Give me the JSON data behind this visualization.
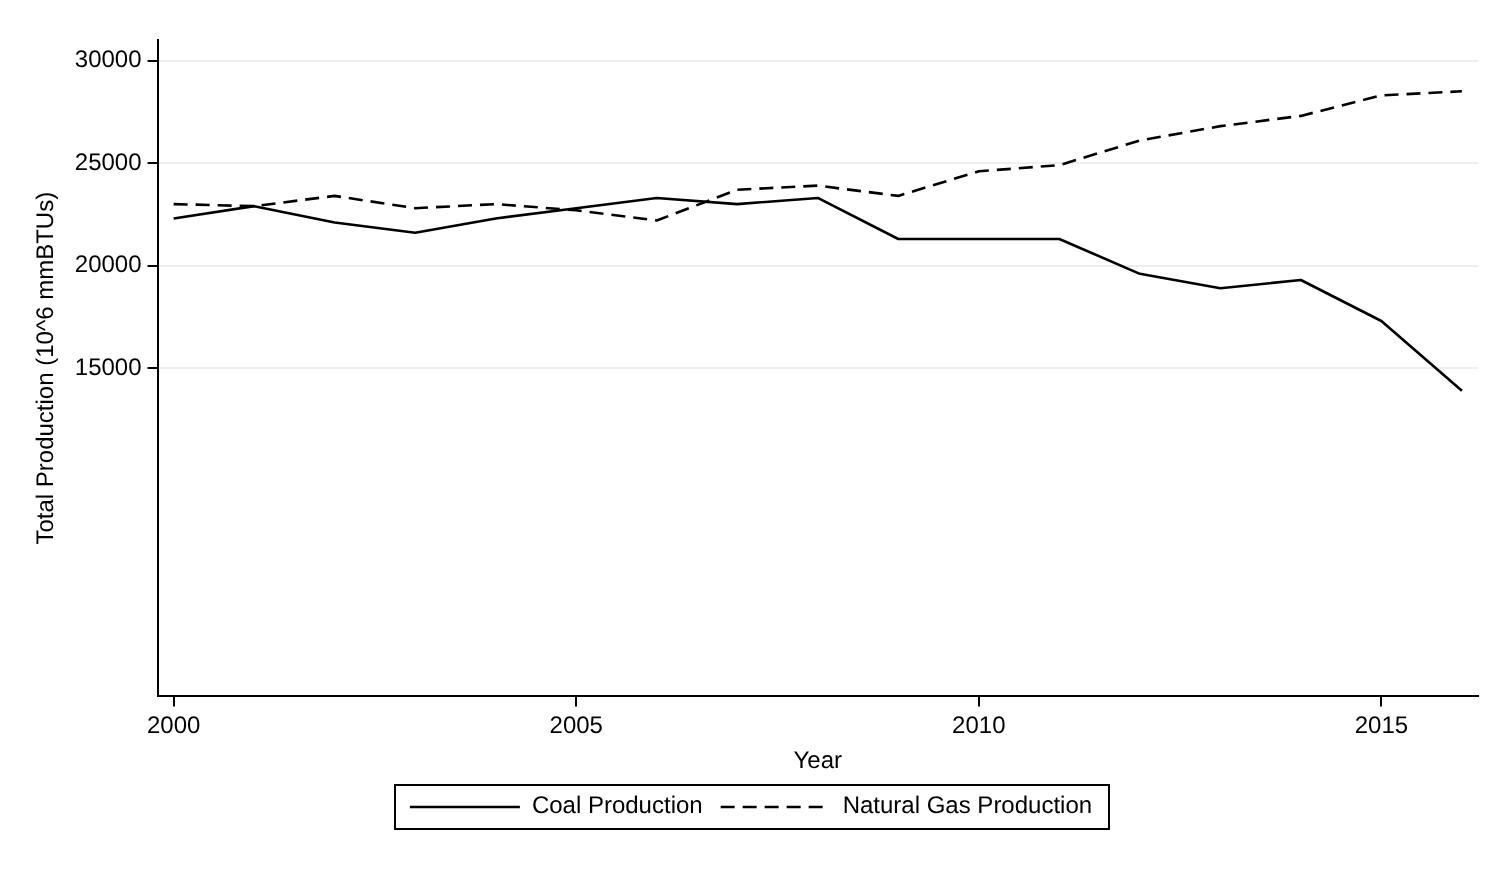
{
  "chart_data": {
    "type": "line",
    "xlabel": "Year",
    "ylabel": "Total Production (10^6 mmBTUs)",
    "x": [
      2000,
      2001,
      2002,
      2003,
      2004,
      2005,
      2006,
      2007,
      2008,
      2009,
      2010,
      2011,
      2012,
      2013,
      2014,
      2015,
      2016
    ],
    "series": [
      {
        "name": "Coal Production",
        "color": "#000000",
        "line_style": "solid",
        "values": [
          22300,
          22900,
          22100,
          21600,
          22300,
          22800,
          23300,
          23000,
          23300,
          21300,
          21300,
          21300,
          19600,
          18900,
          19300,
          17300,
          13900
        ]
      },
      {
        "name": "Natural Gas Production",
        "color": "#000000",
        "line_style": "dashed",
        "values": [
          23000,
          22900,
          23400,
          22800,
          23000,
          22700,
          22200,
          23700,
          23900,
          23400,
          24600,
          24900,
          26100,
          26800,
          27300,
          28300,
          28500
        ]
      }
    ],
    "xlim": [
      1999.8,
      2016.2
    ],
    "xticks": [
      2000,
      2005,
      2010,
      2015
    ],
    "ylim": [
      -1000,
      31000
    ],
    "yticks": [
      15000,
      20000,
      25000,
      30000
    ],
    "grid": "y",
    "legend": "bottom",
    "marker": "none"
  }
}
